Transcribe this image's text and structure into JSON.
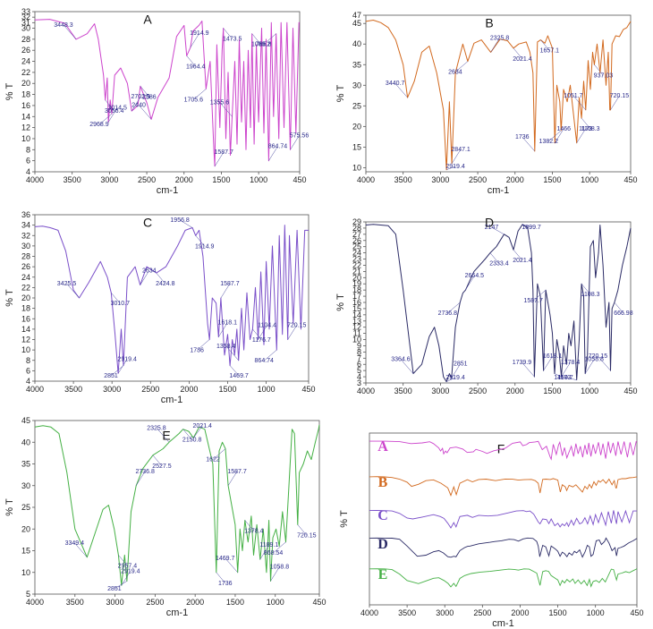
{
  "colors": {
    "A": "#cc44cc",
    "B": "#d2691e",
    "C": "#7a4fc9",
    "D": "#2b2b66",
    "E": "#44b044"
  },
  "chart_data": [
    {
      "id": "A",
      "type": "line",
      "title": "A",
      "xlabel": "cm-1",
      "ylabel": "% T",
      "xlim": [
        4000,
        450
      ],
      "ylim": [
        4,
        33
      ],
      "x_ticks": [
        4000,
        3500,
        3000,
        2500,
        2000,
        1500,
        1000,
        450
      ],
      "y_ticks": [
        4,
        6,
        8,
        10,
        12,
        14,
        16,
        18,
        20,
        22,
        24,
        26,
        28,
        30,
        31,
        32,
        33
      ],
      "x": [
        4000,
        3800,
        3600,
        3448.3,
        3300,
        3200,
        3150,
        3080,
        3056.4,
        3030,
        3014.5,
        2990,
        2968.9,
        2930,
        2850,
        2760,
        2702.5,
        2620,
        2586,
        2500,
        2440,
        2350,
        2200,
        2100,
        2000,
        1964.4,
        1914.9,
        1880,
        1800,
        1760,
        1705.6,
        1650,
        1600,
        1587.7,
        1560,
        1520,
        1490,
        1473.5,
        1440,
        1410,
        1380,
        1355.6,
        1320,
        1290,
        1260,
        1230,
        1200,
        1170,
        1140,
        1110,
        1089.2,
        1060,
        1030,
        1000,
        960,
        930,
        900,
        864.74,
        830,
        800,
        765.8,
        730,
        700,
        660,
        620,
        575.56,
        540,
        500,
        460,
        450
      ],
      "values": [
        31.5,
        31.6,
        30.9,
        28,
        29,
        30.8,
        28,
        21.5,
        17,
        21,
        13,
        17,
        14.5,
        21.5,
        22.8,
        20,
        15,
        16,
        19.5,
        16.5,
        13.5,
        17.5,
        21,
        28.5,
        30.5,
        25,
        26.5,
        29.5,
        30.5,
        31.3,
        19,
        24,
        8,
        5,
        27,
        12,
        26,
        30,
        10,
        22,
        7,
        14,
        24,
        9,
        28,
        13,
        24,
        8,
        26,
        12,
        29,
        9,
        27,
        13,
        30,
        11,
        28,
        6,
        31,
        14,
        29,
        10,
        31,
        12,
        31,
        8,
        30,
        11,
        31,
        31
      ],
      "annotations": [
        "3448.3",
        "3056.4",
        "3014.5",
        "2968.9",
        "2702.5",
        "2586",
        "2440",
        "1964.4",
        "1914.9",
        "1705.6",
        "1587.7",
        "1473.5",
        "1355.6",
        "1089.2",
        "864.74",
        "765.8",
        "575.56"
      ]
    },
    {
      "id": "B",
      "type": "line",
      "title": "B",
      "xlabel": "cm-1",
      "ylabel": "% T",
      "xlim": [
        4000,
        450
      ],
      "ylim": [
        9,
        47
      ],
      "x_ticks": [
        4000,
        3500,
        3000,
        2500,
        2000,
        1500,
        1000,
        450
      ],
      "y_ticks": [
        10,
        15,
        20,
        25,
        30,
        35,
        40,
        45,
        47
      ],
      "x": [
        4000,
        3900,
        3800,
        3700,
        3600,
        3500,
        3440.7,
        3350,
        3250,
        3150,
        3050,
        2960,
        2919.4,
        2880,
        2847.1,
        2800,
        2700,
        2634,
        2550,
        2450,
        2325.8,
        2200,
        2100,
        2021.4,
        1950,
        1850,
        1800,
        1760,
        1736,
        1700,
        1657.1,
        1600,
        1560,
        1500,
        1490,
        1466,
        1440,
        1400,
        1382.2,
        1350,
        1300,
        1260,
        1173,
        1140,
        1108.3,
        1080,
        1051.7,
        1020,
        990,
        960,
        937.03,
        900,
        860,
        820,
        780,
        750,
        730,
        720.15,
        700,
        650,
        600,
        550,
        500,
        450
      ],
      "values": [
        45.5,
        45.8,
        45.2,
        44,
        41,
        35,
        27,
        31,
        38,
        39.5,
        33,
        24,
        9.5,
        26,
        11,
        33,
        40,
        35.8,
        40.2,
        41,
        38,
        41.2,
        40.8,
        39,
        40,
        40.5,
        38,
        33,
        14,
        40.5,
        41,
        40.2,
        42,
        39,
        32,
        16,
        30,
        26,
        19,
        29,
        26,
        30,
        16,
        27,
        22,
        31,
        24,
        36,
        29,
        38,
        35,
        40,
        33,
        41,
        30,
        38,
        24,
        24,
        40,
        42,
        41.8,
        43.5,
        44,
        45.5
      ],
      "annotations": [
        "3440.7",
        "2919.4",
        "2847.1",
        "2634",
        "2325.8",
        "2021.4",
        "1736",
        "1657.1",
        "1466",
        "1382.2",
        "1173",
        "1108.3",
        "1051.7",
        "937.03",
        "720.15"
      ]
    },
    {
      "id": "C",
      "type": "line",
      "title": "C",
      "xlabel": "cm-1",
      "ylabel": "% T",
      "xlim": [
        4000,
        450
      ],
      "ylim": [
        4,
        36
      ],
      "x_ticks": [
        4000,
        3500,
        3000,
        2500,
        2000,
        1500,
        1000,
        450
      ],
      "y_ticks": [
        4,
        6,
        8,
        10,
        12,
        14,
        16,
        18,
        20,
        22,
        24,
        26,
        28,
        30,
        32,
        34,
        36
      ],
      "x": [
        4000,
        3900,
        3800,
        3700,
        3600,
        3500,
        3425.5,
        3300,
        3150,
        3060,
        3010.7,
        2960,
        2919.4,
        2880,
        2851,
        2800,
        2700,
        2634,
        2550,
        2424.8,
        2300,
        2150,
        2050,
        1956.8,
        1914.9,
        1870,
        1820,
        1760,
        1736,
        1700,
        1650,
        1618.1,
        1587.7,
        1540,
        1500,
        1469.7,
        1440,
        1410,
        1380,
        1358.4,
        1320,
        1290,
        1250,
        1210,
        1176.7,
        1140,
        1104.4,
        1070,
        1030,
        1000,
        960,
        920,
        864.74,
        830,
        790,
        760,
        720.15,
        700,
        650,
        600,
        550,
        500,
        460,
        450
      ],
      "values": [
        33.7,
        33.8,
        33.5,
        33,
        29,
        21.5,
        20,
        23,
        27,
        24,
        21,
        13,
        5.5,
        14,
        7,
        24,
        26,
        22.5,
        26,
        24.8,
        26,
        30,
        33,
        33.5,
        32,
        33,
        28,
        15,
        12,
        20,
        19,
        12.5,
        20,
        9,
        13,
        7,
        12,
        9,
        14,
        8,
        18,
        10,
        21,
        12,
        14,
        22,
        12,
        25,
        11,
        27,
        14,
        30,
        10,
        32,
        13,
        34,
        12,
        32,
        15,
        33,
        14,
        33,
        33,
        33
      ],
      "annotations": [
        "3425.5",
        "3010.7",
        "2919.4",
        "2851",
        "2634",
        "2424.8",
        "1956.8",
        "1914.9",
        "1587.7",
        "1736",
        "1618.1",
        "1469.7",
        "1358.4",
        "1176.7",
        "1104.4",
        "864.74",
        "720.15"
      ]
    },
    {
      "id": "D",
      "type": "line",
      "title": "D",
      "xlabel": "",
      "ylabel": "% T",
      "xlim": [
        4000,
        450
      ],
      "ylim": [
        3,
        29
      ],
      "x_ticks": [
        4000,
        3500,
        3000,
        2500,
        2000,
        1500,
        1000,
        450
      ],
      "y_ticks": [
        3,
        4,
        5,
        6,
        7,
        8,
        9,
        10,
        11,
        12,
        13,
        14,
        15,
        16,
        17,
        18,
        19,
        20,
        21,
        22,
        23,
        24,
        25,
        26,
        27,
        28,
        29
      ],
      "x": [
        4000,
        3900,
        3800,
        3700,
        3600,
        3500,
        3364.6,
        3250,
        3150,
        3080,
        3020,
        2960,
        2919.4,
        2880,
        2851,
        2800,
        2736.8,
        2700,
        2664.5,
        2550,
        2400,
        2333.4,
        2250,
        2147,
        2080,
        2021.4,
        1960,
        1899.7,
        1830,
        1780,
        1760,
        1739.9,
        1700,
        1660,
        1618.1,
        1587.7,
        1530,
        1500,
        1469.7,
        1440,
        1410,
        1378.4,
        1350,
        1310,
        1280,
        1250,
        1210,
        1173,
        1140,
        1108.3,
        1080,
        1058.8,
        1030,
        990,
        950,
        920,
        880,
        860,
        820,
        780,
        740,
        720.15,
        700,
        666.98,
        620,
        560,
        500,
        450
      ],
      "values": [
        28.5,
        28.6,
        28.5,
        28.4,
        27,
        18,
        4.5,
        6,
        10.5,
        12,
        9,
        4,
        3.2,
        4.5,
        3.8,
        12,
        16,
        17.5,
        18,
        21,
        23,
        24,
        25,
        27,
        26.5,
        24.5,
        27.5,
        28.6,
        28,
        24,
        18,
        4,
        19,
        17,
        5,
        18,
        14,
        11,
        4.5,
        10,
        8,
        4,
        9,
        6,
        11,
        9,
        13,
        3.5,
        10,
        19,
        17,
        4.5,
        7,
        25,
        26,
        20,
        24,
        28.5,
        22,
        12,
        16,
        5,
        15,
        16,
        18,
        22,
        25,
        28
      ],
      "annotations": [
        "3364.6",
        "2919.4",
        "2851",
        "2736.8",
        "2664.5",
        "2333.4",
        "2147",
        "2021.4",
        "1899.7",
        "1587.7",
        "1618.1",
        "1108.3",
        "1739.9",
        "1469.7",
        "1378.4",
        "1173",
        "1058.8",
        "666.98",
        "720.15"
      ]
    },
    {
      "id": "E",
      "type": "line",
      "title": "E",
      "xlabel": "cm-1",
      "ylabel": "% T",
      "xlim": [
        4000,
        450
      ],
      "ylim": [
        5,
        45
      ],
      "x_ticks": [
        4000,
        3500,
        3000,
        2500,
        2000,
        1500,
        1000,
        450
      ],
      "y_ticks": [
        5,
        10,
        15,
        20,
        25,
        30,
        35,
        40,
        45
      ],
      "x": [
        4000,
        3900,
        3800,
        3700,
        3600,
        3500,
        3349.4,
        3250,
        3150,
        3080,
        3010,
        2957.4,
        2919.4,
        2880,
        2851,
        2800,
        2736.8,
        2650,
        2527.5,
        2400,
        2325.8,
        2200,
        2150.8,
        2080,
        2021.4,
        1950,
        1880,
        1780,
        1736,
        1700,
        1660,
        1622,
        1587.7,
        1540,
        1500,
        1469.7,
        1440,
        1410,
        1378.4,
        1340,
        1300,
        1270,
        1230,
        1189.1,
        1150,
        1110,
        1080,
        1058.8,
        1030,
        990,
        950,
        910,
        868.54,
        830,
        790,
        760,
        720.15,
        700,
        650,
        600,
        550,
        500,
        460,
        450
      ],
      "values": [
        43.5,
        43.8,
        43.5,
        42,
        33,
        20,
        13.5,
        19,
        24.5,
        25.5,
        20,
        14,
        7,
        14,
        8,
        24,
        30,
        34,
        37,
        38.5,
        40,
        42,
        43,
        42.5,
        41,
        43.5,
        43,
        35,
        10,
        38,
        40,
        38.5,
        30,
        25,
        21,
        10,
        20,
        15,
        22,
        17,
        23,
        14,
        21,
        13,
        20,
        10,
        22,
        8,
        18,
        20,
        16,
        24,
        17,
        30,
        43,
        42,
        21,
        33,
        35,
        38,
        36,
        40,
        43,
        44
      ],
      "annotations": [
        "3349.4",
        "2957.4",
        "2919.4",
        "2851",
        "2736.8",
        "2527.5",
        "2325.8",
        "2150.8",
        "2021.4",
        "1622",
        "1587.7",
        "1736",
        "1469.7",
        "1378.4",
        "1189.1",
        "868.54",
        "1058.8",
        "720.15"
      ]
    },
    {
      "id": "F",
      "type": "line",
      "title": "F",
      "xlabel": "cm-1",
      "ylabel": "% T",
      "xlim": [
        4000,
        450
      ],
      "x_ticks": [
        4000,
        3500,
        3000,
        2500,
        2000,
        1500,
        1000,
        450
      ],
      "series": [
        {
          "name": "A",
          "color_key": "A"
        },
        {
          "name": "B",
          "color_key": "B"
        },
        {
          "name": "C",
          "color_key": "C"
        },
        {
          "name": "D",
          "color_key": "D"
        },
        {
          "name": "E",
          "color_key": "E"
        }
      ],
      "note": "stacked overlay of spectra A–E"
    }
  ]
}
